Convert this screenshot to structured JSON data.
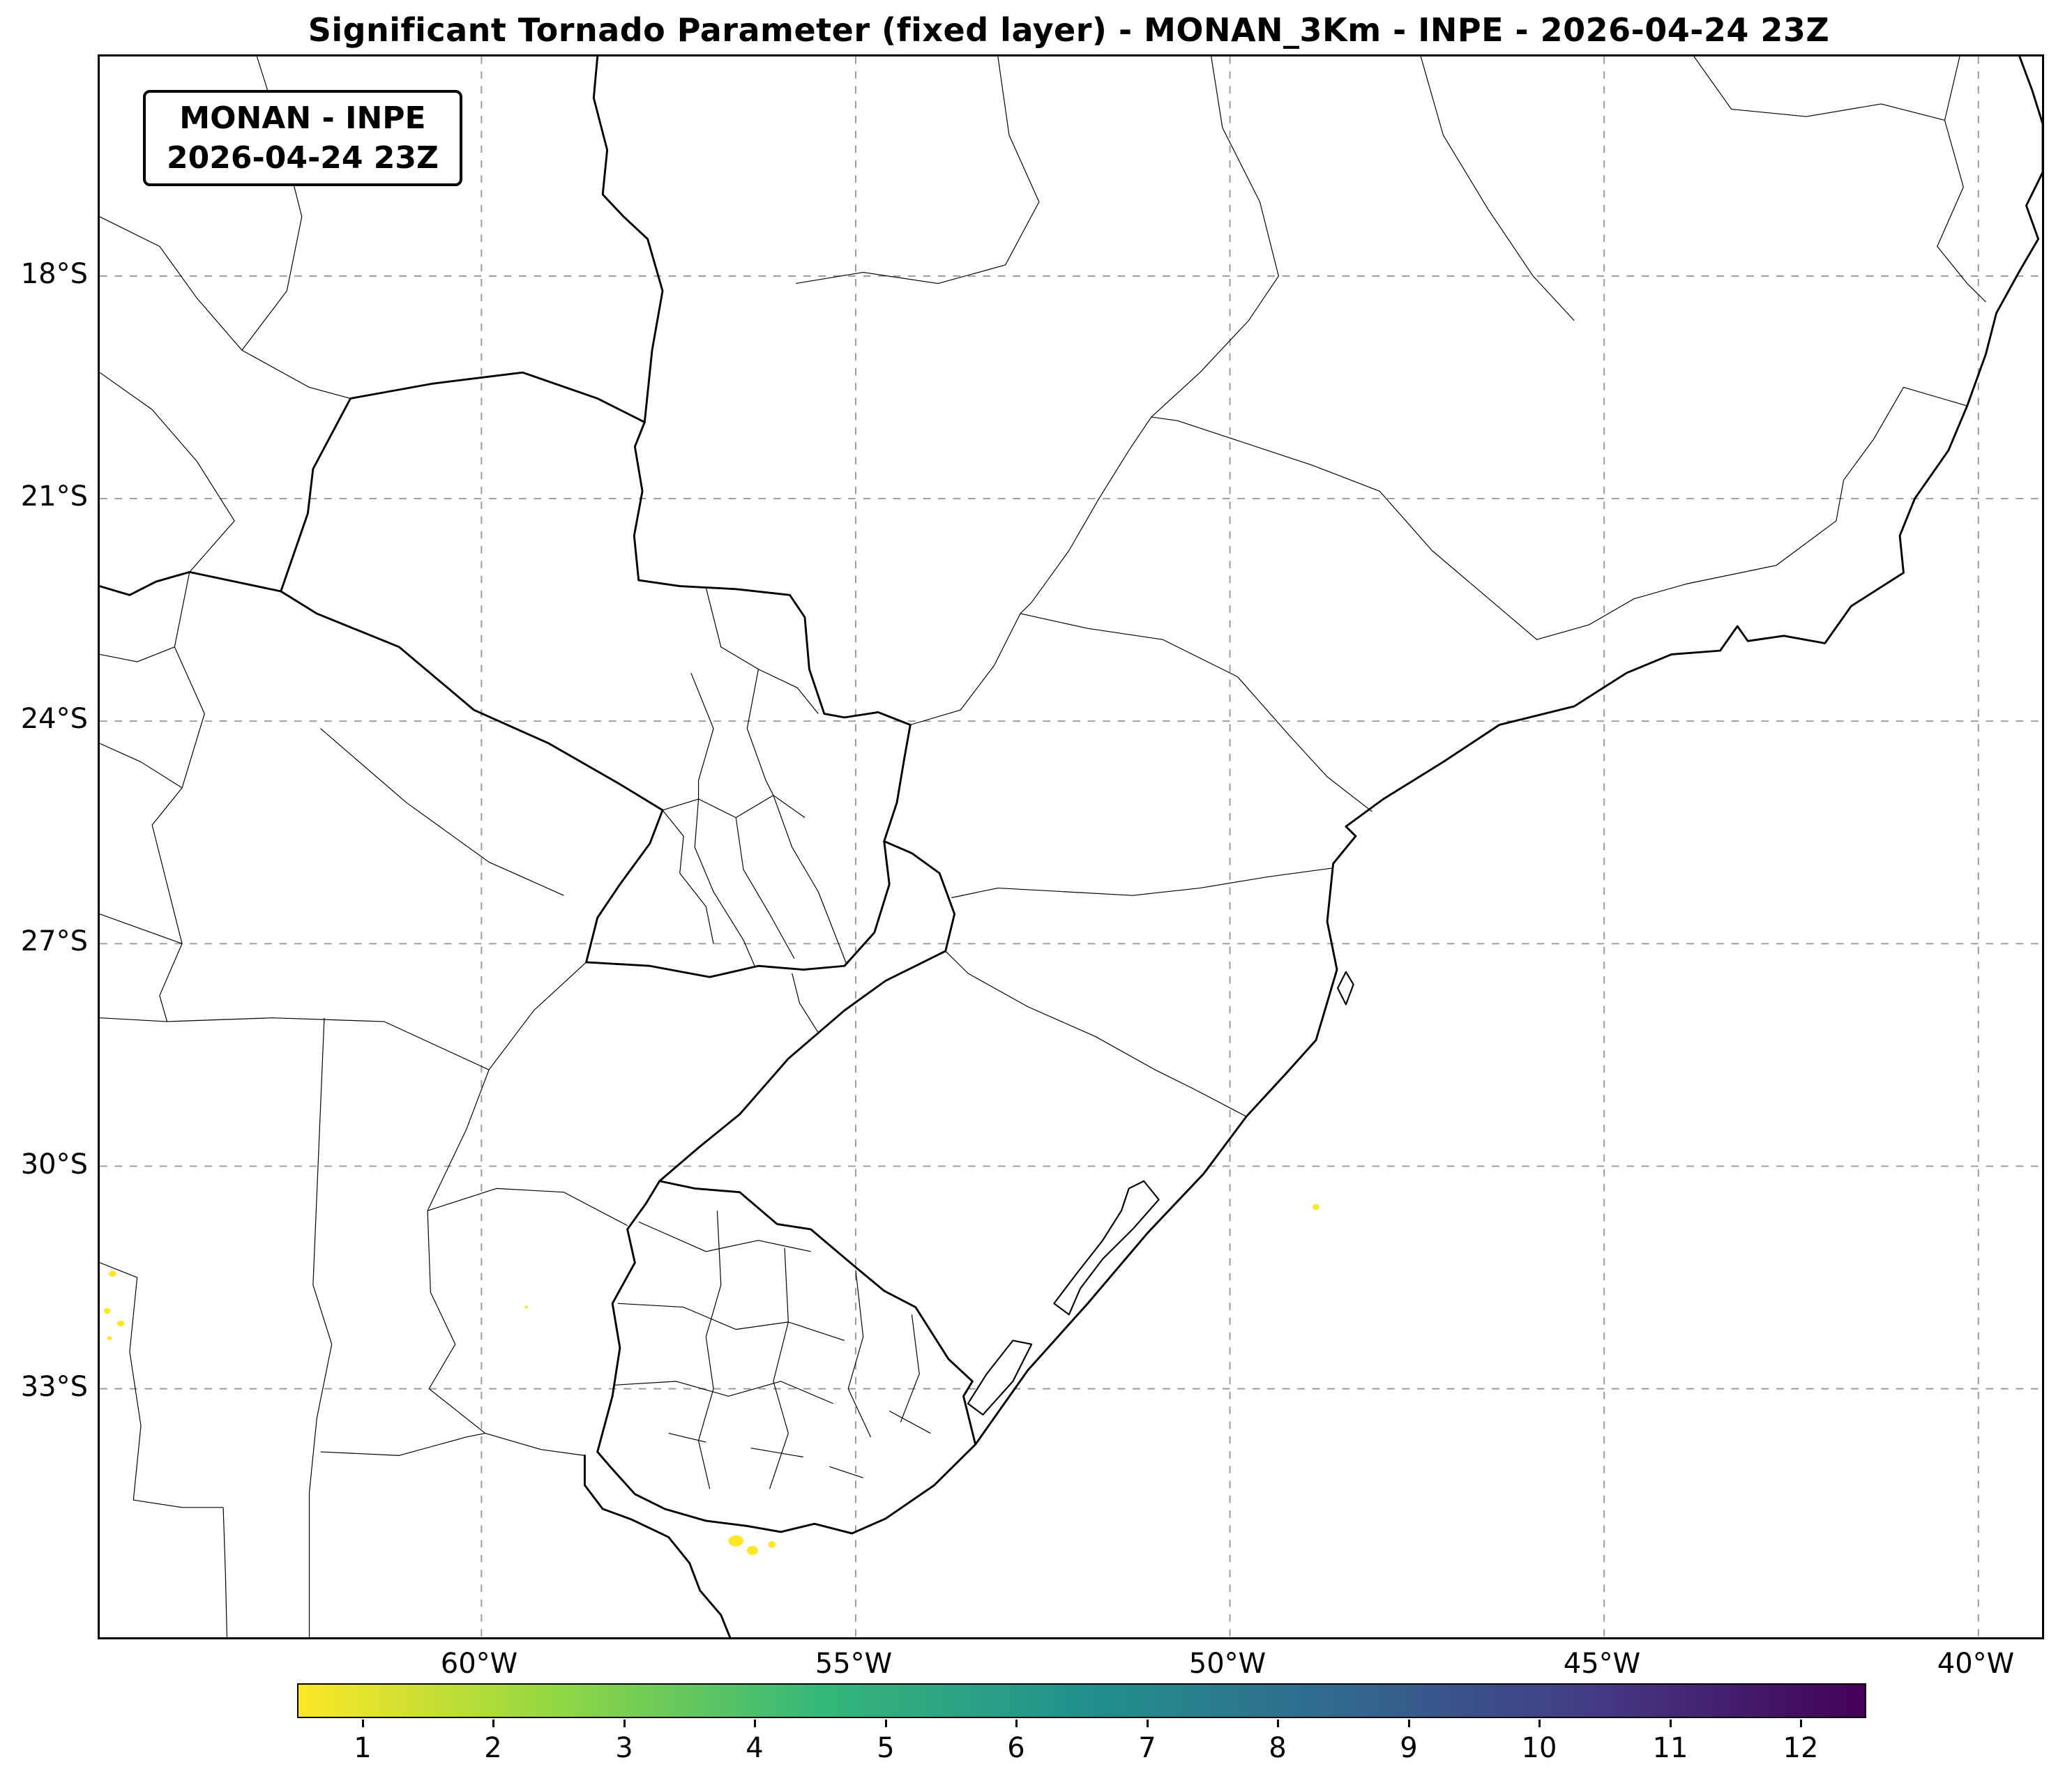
{
  "title": "Significant Tornado Parameter (fixed layer) - MONAN_3Km - INPE - 2026-04-24 23Z",
  "info_box": {
    "line1": "MONAN - INPE",
    "line2": "2026-04-24 23Z"
  },
  "map": {
    "projection_extent": {
      "lon_west": -65.1,
      "lon_east": -39.15,
      "lat_north_s": 15.04,
      "lat_south_s": 36.35
    },
    "grid": {
      "style": "dashed-gray",
      "lat_ticks": [
        "18°S",
        "21°S",
        "24°S",
        "27°S",
        "30°S",
        "33°S"
      ],
      "lat_values_s": [
        18,
        21,
        24,
        27,
        30,
        33
      ],
      "lon_ticks": [
        "60°W",
        "55°W",
        "50°W",
        "45°W",
        "40°W"
      ],
      "lon_values": [
        -60,
        -55,
        -50,
        -45,
        -40
      ]
    },
    "stp_regions": [
      {
        "lon": -56.6,
        "lat_s": 35.05,
        "rx": 0.1,
        "ry": 0.075,
        "value": 0.8
      },
      {
        "lon": -56.38,
        "lat_s": 35.18,
        "rx": 0.075,
        "ry": 0.06,
        "value": 0.6
      },
      {
        "lon": -56.12,
        "lat_s": 35.1,
        "rx": 0.05,
        "ry": 0.045,
        "value": 0.5
      },
      {
        "lon": -64.93,
        "lat_s": 31.45,
        "rx": 0.05,
        "ry": 0.04,
        "value": 0.5
      },
      {
        "lon": -65.0,
        "lat_s": 31.95,
        "rx": 0.045,
        "ry": 0.04,
        "value": 0.5
      },
      {
        "lon": -64.82,
        "lat_s": 32.12,
        "rx": 0.05,
        "ry": 0.04,
        "value": 0.5
      },
      {
        "lon": -64.97,
        "lat_s": 32.32,
        "rx": 0.03,
        "ry": 0.028,
        "value": 0.5
      },
      {
        "lon": -48.85,
        "lat_s": 30.55,
        "rx": 0.045,
        "ry": 0.04,
        "value": 0.5
      },
      {
        "lon": -59.4,
        "lat_s": 31.9,
        "rx": 0.022,
        "ry": 0.02,
        "value": 0.5
      }
    ]
  },
  "colorbar": {
    "ticks": [
      "1",
      "2",
      "3",
      "4",
      "5",
      "6",
      "7",
      "8",
      "9",
      "10",
      "11",
      "12"
    ],
    "vmin": 0.5,
    "vmax": 12.5,
    "colormap": "viridis_r",
    "stops": [
      "#fde725",
      "#90d743",
      "#35b779",
      "#21918c",
      "#31688e",
      "#443983",
      "#440154"
    ]
  },
  "colors": {
    "stp_low": "#fde725",
    "gridline": "#9a9a9a",
    "coastline": "#000000",
    "background": "#ffffff"
  }
}
